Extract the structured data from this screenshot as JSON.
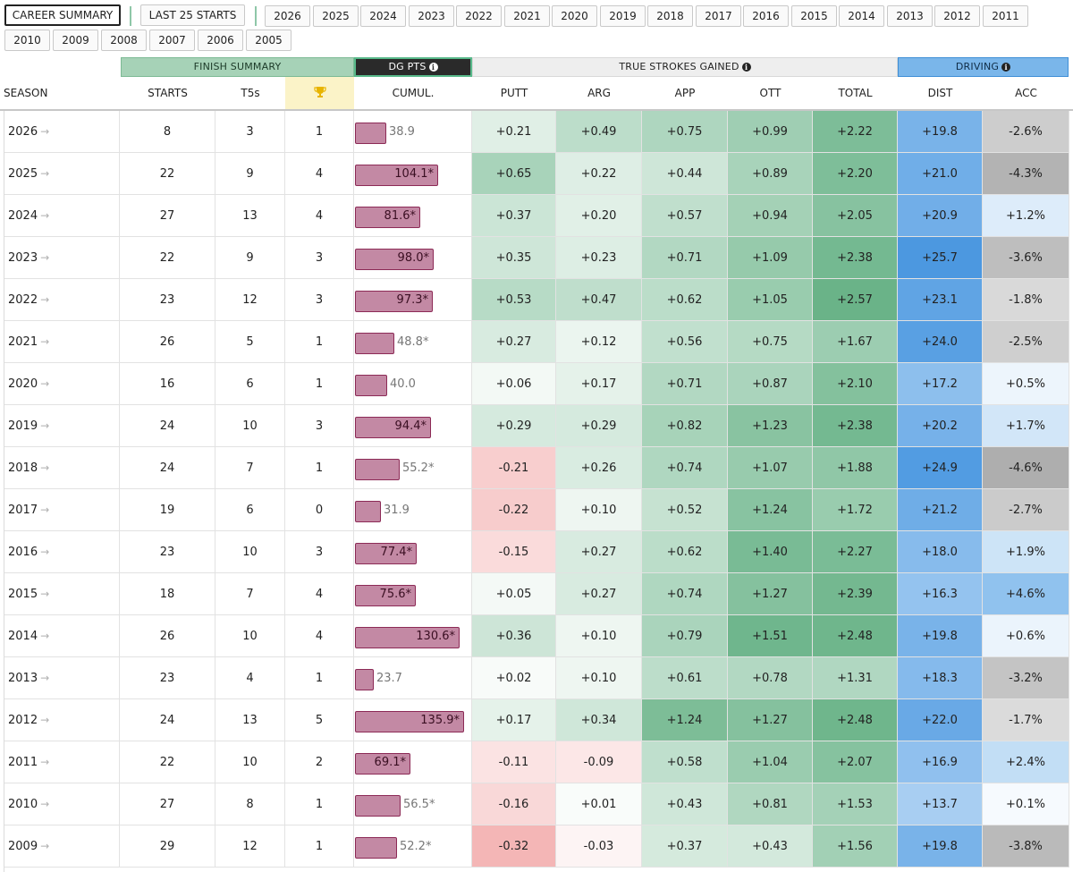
{
  "tabs": {
    "primary": [
      {
        "label": "CAREER SUMMARY",
        "active": true
      },
      {
        "label": "LAST 25 STARTS",
        "active": false
      }
    ],
    "years": [
      "2026",
      "2025",
      "2024",
      "2023",
      "2022",
      "2021",
      "2020",
      "2019",
      "2018",
      "2017",
      "2016",
      "2015",
      "2014",
      "2013",
      "2012",
      "2011",
      "2010",
      "2009",
      "2008",
      "2007",
      "2006",
      "2005"
    ]
  },
  "groups": {
    "finish": "FINISH SUMMARY",
    "dg": "DG PTS",
    "sg": "TRUE STROKES GAINED",
    "driving": "DRIVING"
  },
  "columns": {
    "season": "SEASON",
    "starts": "STARTS",
    "t5": "T5s",
    "wins_icon": "trophy-icon",
    "cumul": "CUMUL.",
    "putt": "PUTT",
    "arg": "ARG",
    "app": "APP",
    "ott": "OTT",
    "total": "TOTAL",
    "dist": "DIST",
    "acc": "ACC"
  },
  "colors": {
    "dg_bar": "#c389a4",
    "dg_bar_border": "#8c2a56",
    "sg_positive": "#5fae80",
    "sg_negative": "#f2a7a7",
    "dist_scale": "#4a97e0",
    "acc_positive": "#7ab6ea",
    "acc_negative": "#a8a8a8"
  },
  "rows": [
    {
      "season": "2026",
      "starts": "8",
      "t5": "3",
      "wins": "1",
      "dg": "38.9",
      "dg_value": 38.9,
      "putt": "+0.21",
      "arg": "+0.49",
      "app": "+0.75",
      "ott": "+0.99",
      "total": "+2.22",
      "dist": "+19.8",
      "acc": "-2.6%"
    },
    {
      "season": "2025",
      "starts": "22",
      "t5": "9",
      "wins": "4",
      "dg": "104.1*",
      "dg_value": 104.1,
      "putt": "+0.65",
      "arg": "+0.22",
      "app": "+0.44",
      "ott": "+0.89",
      "total": "+2.20",
      "dist": "+21.0",
      "acc": "-4.3%"
    },
    {
      "season": "2024",
      "starts": "27",
      "t5": "13",
      "wins": "4",
      "dg": "81.6*",
      "dg_value": 81.6,
      "putt": "+0.37",
      "arg": "+0.20",
      "app": "+0.57",
      "ott": "+0.94",
      "total": "+2.05",
      "dist": "+20.9",
      "acc": "+1.2%"
    },
    {
      "season": "2023",
      "starts": "22",
      "t5": "9",
      "wins": "3",
      "dg": "98.0*",
      "dg_value": 98.0,
      "putt": "+0.35",
      "arg": "+0.23",
      "app": "+0.71",
      "ott": "+1.09",
      "total": "+2.38",
      "dist": "+25.7",
      "acc": "-3.6%"
    },
    {
      "season": "2022",
      "starts": "23",
      "t5": "12",
      "wins": "3",
      "dg": "97.3*",
      "dg_value": 97.3,
      "putt": "+0.53",
      "arg": "+0.47",
      "app": "+0.62",
      "ott": "+1.05",
      "total": "+2.57",
      "dist": "+23.1",
      "acc": "-1.8%"
    },
    {
      "season": "2021",
      "starts": "26",
      "t5": "5",
      "wins": "1",
      "dg": "48.8*",
      "dg_value": 48.8,
      "putt": "+0.27",
      "arg": "+0.12",
      "app": "+0.56",
      "ott": "+0.75",
      "total": "+1.67",
      "dist": "+24.0",
      "acc": "-2.5%"
    },
    {
      "season": "2020",
      "starts": "16",
      "t5": "6",
      "wins": "1",
      "dg": "40.0",
      "dg_value": 40.0,
      "putt": "+0.06",
      "arg": "+0.17",
      "app": "+0.71",
      "ott": "+0.87",
      "total": "+2.10",
      "dist": "+17.2",
      "acc": "+0.5%"
    },
    {
      "season": "2019",
      "starts": "24",
      "t5": "10",
      "wins": "3",
      "dg": "94.4*",
      "dg_value": 94.4,
      "putt": "+0.29",
      "arg": "+0.29",
      "app": "+0.82",
      "ott": "+1.23",
      "total": "+2.38",
      "dist": "+20.2",
      "acc": "+1.7%"
    },
    {
      "season": "2018",
      "starts": "24",
      "t5": "7",
      "wins": "1",
      "dg": "55.2*",
      "dg_value": 55.2,
      "putt": "-0.21",
      "arg": "+0.26",
      "app": "+0.74",
      "ott": "+1.07",
      "total": "+1.88",
      "dist": "+24.9",
      "acc": "-4.6%"
    },
    {
      "season": "2017",
      "starts": "19",
      "t5": "6",
      "wins": "0",
      "dg": "31.9",
      "dg_value": 31.9,
      "putt": "-0.22",
      "arg": "+0.10",
      "app": "+0.52",
      "ott": "+1.24",
      "total": "+1.72",
      "dist": "+21.2",
      "acc": "-2.7%"
    },
    {
      "season": "2016",
      "starts": "23",
      "t5": "10",
      "wins": "3",
      "dg": "77.4*",
      "dg_value": 77.4,
      "putt": "-0.15",
      "arg": "+0.27",
      "app": "+0.62",
      "ott": "+1.40",
      "total": "+2.27",
      "dist": "+18.0",
      "acc": "+1.9%"
    },
    {
      "season": "2015",
      "starts": "18",
      "t5": "7",
      "wins": "4",
      "dg": "75.6*",
      "dg_value": 75.6,
      "putt": "+0.05",
      "arg": "+0.27",
      "app": "+0.74",
      "ott": "+1.27",
      "total": "+2.39",
      "dist": "+16.3",
      "acc": "+4.6%"
    },
    {
      "season": "2014",
      "starts": "26",
      "t5": "10",
      "wins": "4",
      "dg": "130.6*",
      "dg_value": 130.6,
      "putt": "+0.36",
      "arg": "+0.10",
      "app": "+0.79",
      "ott": "+1.51",
      "total": "+2.48",
      "dist": "+19.8",
      "acc": "+0.6%"
    },
    {
      "season": "2013",
      "starts": "23",
      "t5": "4",
      "wins": "1",
      "dg": "23.7",
      "dg_value": 23.7,
      "putt": "+0.02",
      "arg": "+0.10",
      "app": "+0.61",
      "ott": "+0.78",
      "total": "+1.31",
      "dist": "+18.3",
      "acc": "-3.2%"
    },
    {
      "season": "2012",
      "starts": "24",
      "t5": "13",
      "wins": "5",
      "dg": "135.9*",
      "dg_value": 135.9,
      "putt": "+0.17",
      "arg": "+0.34",
      "app": "+1.24",
      "ott": "+1.27",
      "total": "+2.48",
      "dist": "+22.0",
      "acc": "-1.7%"
    },
    {
      "season": "2011",
      "starts": "22",
      "t5": "10",
      "wins": "2",
      "dg": "69.1*",
      "dg_value": 69.1,
      "putt": "-0.11",
      "arg": "-0.09",
      "app": "+0.58",
      "ott": "+1.04",
      "total": "+2.07",
      "dist": "+16.9",
      "acc": "+2.4%"
    },
    {
      "season": "2010",
      "starts": "27",
      "t5": "8",
      "wins": "1",
      "dg": "56.5*",
      "dg_value": 56.5,
      "putt": "-0.16",
      "arg": "+0.01",
      "app": "+0.43",
      "ott": "+0.81",
      "total": "+1.53",
      "dist": "+13.7",
      "acc": "+0.1%"
    },
    {
      "season": "2009",
      "starts": "29",
      "t5": "12",
      "wins": "1",
      "dg": "52.2*",
      "dg_value": 52.2,
      "putt": "-0.32",
      "arg": "-0.03",
      "app": "+0.37",
      "ott": "+0.43",
      "total": "+1.56",
      "dist": "+19.8",
      "acc": "-3.8%"
    }
  ]
}
